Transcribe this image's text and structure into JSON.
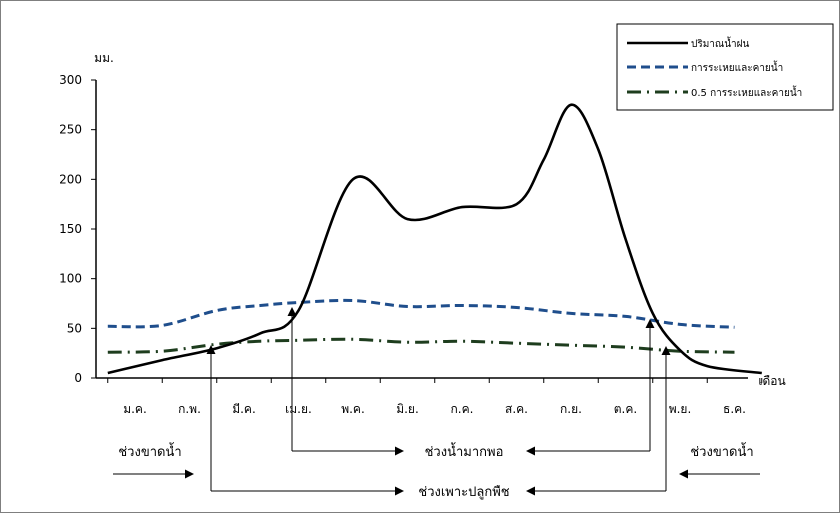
{
  "chart_data": {
    "type": "line",
    "ylabel": "มม.",
    "xlabel": "เดือน",
    "ylim": [
      0,
      300
    ],
    "yticks": [
      0,
      50,
      100,
      150,
      200,
      250,
      300
    ],
    "categories": [
      "ม.ค.",
      "ก.พ.",
      "มี.ค.",
      "เม.ย.",
      "พ.ค.",
      "มิ.ย.",
      "ก.ค.",
      "ส.ค.",
      "ก.ย.",
      "ต.ค.",
      "พ.ย.",
      "ธ.ค."
    ],
    "legend_position": "top-right",
    "series": [
      {
        "name": "ปริมาณน้ำฝน",
        "color": "#000000",
        "style": "solid",
        "points": [
          [
            -0.5,
            5
          ],
          [
            0.5,
            18
          ],
          [
            1.5,
            30
          ],
          [
            2.3,
            45
          ],
          [
            3.0,
            68
          ],
          [
            4.0,
            200
          ],
          [
            5.0,
            160
          ],
          [
            6.0,
            172
          ],
          [
            7.0,
            175
          ],
          [
            7.5,
            220
          ],
          [
            8.0,
            275
          ],
          [
            8.5,
            230
          ],
          [
            9.0,
            140
          ],
          [
            9.5,
            65
          ],
          [
            10.0,
            28
          ],
          [
            10.5,
            12
          ],
          [
            11.5,
            5
          ]
        ]
      },
      {
        "name": "การระเหยและคายน้ำ",
        "color": "#1f4e8c",
        "style": "dashed",
        "points": [
          [
            -0.5,
            52
          ],
          [
            0.5,
            53
          ],
          [
            1.5,
            68
          ],
          [
            2.3,
            73
          ],
          [
            3.0,
            76
          ],
          [
            4.0,
            78
          ],
          [
            5.0,
            72
          ],
          [
            6.0,
            73
          ],
          [
            7.0,
            71
          ],
          [
            8.0,
            65
          ],
          [
            9.0,
            62
          ],
          [
            10.0,
            54
          ],
          [
            11.0,
            51
          ]
        ]
      },
      {
        "name": "0.5 การระเหยและคายน้ำ",
        "color": "#1e3d1e",
        "style": "dash-dot",
        "points": [
          [
            -0.5,
            26
          ],
          [
            0.5,
            27
          ],
          [
            1.5,
            34
          ],
          [
            2.3,
            37
          ],
          [
            3.0,
            38
          ],
          [
            4.0,
            39
          ],
          [
            5.0,
            36
          ],
          [
            6.0,
            37
          ],
          [
            7.0,
            35
          ],
          [
            8.0,
            33
          ],
          [
            9.0,
            31
          ],
          [
            10.0,
            27
          ],
          [
            11.0,
            26
          ]
        ]
      }
    ],
    "annotations": [
      {
        "id": "dry-left",
        "text": "ช่วงขาดน้ำ"
      },
      {
        "id": "dry-right",
        "text": "ช่วงขาดน้ำ"
      },
      {
        "id": "surplus",
        "text": "ช่วงน้ำมากพอ"
      },
      {
        "id": "growing",
        "text": "ช่วงเพาะปลูกพืช"
      }
    ]
  }
}
